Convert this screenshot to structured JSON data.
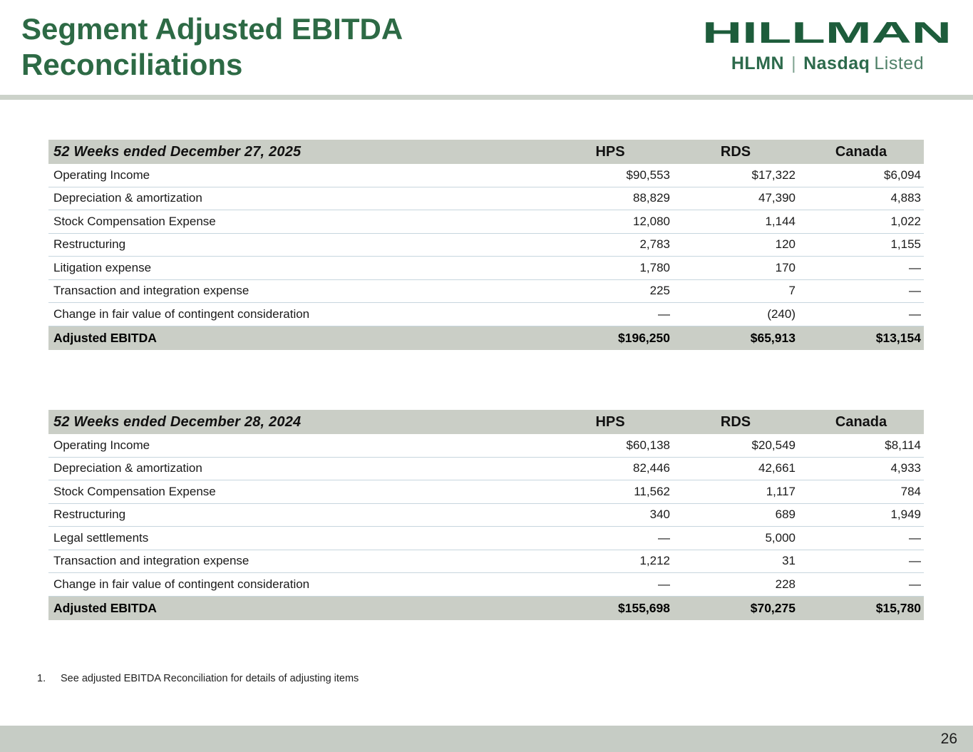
{
  "slide": {
    "title_line1": "Segment Adjusted EBITDA",
    "title_line2": "Reconciliations",
    "page_number": "26"
  },
  "logo": {
    "brand": "HILLMAN",
    "ticker": "HLMN",
    "separator": "|",
    "listing_bold": "Nasdaq",
    "listing_regular": "Listed"
  },
  "footnote": {
    "number": "1.",
    "text": "See adjusted EBITDA Reconciliation for details of adjusting items"
  },
  "colors": {
    "title_green": "#2d6a45",
    "logo_green": "#1d5c3b",
    "band_gray_green": "#cacec6",
    "row_divider_blue_gray": "#c7d6de",
    "footer_bar": "#c6ccc5"
  },
  "tables": [
    {
      "title": "52 Weeks ended December 27, 2025",
      "columns": [
        "HPS",
        "RDS",
        "Canada"
      ],
      "rows": [
        {
          "label": "Operating Income",
          "values": [
            "$90,553",
            "$17,322",
            "$6,094"
          ]
        },
        {
          "label": "Depreciation & amortization",
          "values": [
            "88,829",
            "47,390",
            "4,883"
          ]
        },
        {
          "label": "Stock Compensation Expense",
          "values": [
            "12,080",
            "1,144",
            "1,022"
          ]
        },
        {
          "label": "Restructuring",
          "values": [
            "2,783",
            "120",
            "1,155"
          ]
        },
        {
          "label": "Litigation expense",
          "values": [
            "1,780",
            "170",
            "—"
          ]
        },
        {
          "label": "Transaction and integration expense",
          "values": [
            "225",
            "7",
            "—"
          ]
        },
        {
          "label": "Change in fair value of contingent consideration",
          "values": [
            "—",
            "(240)",
            "—"
          ]
        }
      ],
      "total": {
        "label": "Adjusted EBITDA",
        "values": [
          "$196,250",
          "$65,913",
          "$13,154"
        ]
      }
    },
    {
      "title": "52 Weeks ended December 28, 2024",
      "columns": [
        "HPS",
        "RDS",
        "Canada"
      ],
      "rows": [
        {
          "label": "Operating Income",
          "values": [
            "$60,138",
            "$20,549",
            "$8,114"
          ]
        },
        {
          "label": "Depreciation & amortization",
          "values": [
            "82,446",
            "42,661",
            "4,933"
          ]
        },
        {
          "label": "Stock Compensation Expense",
          "values": [
            "11,562",
            "1,117",
            "784"
          ]
        },
        {
          "label": "Restructuring",
          "values": [
            "340",
            "689",
            "1,949"
          ]
        },
        {
          "label": "Legal settlements",
          "values": [
            "—",
            "5,000",
            "—"
          ]
        },
        {
          "label": "Transaction and integration expense",
          "values": [
            "1,212",
            "31",
            "—"
          ]
        },
        {
          "label": "Change in fair value of contingent consideration",
          "values": [
            "—",
            "228",
            "—"
          ]
        }
      ],
      "total": {
        "label": "Adjusted EBITDA",
        "values": [
          "$155,698",
          "$70,275",
          "$15,780"
        ]
      }
    }
  ]
}
